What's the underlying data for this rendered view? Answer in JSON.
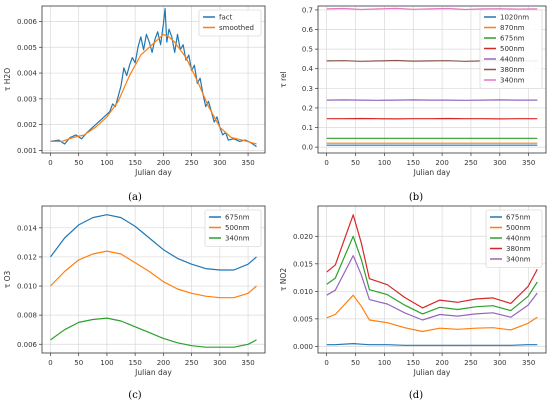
{
  "colors": [
    "#1f77b4",
    "#ff7f0e",
    "#2ca02c",
    "#d62728",
    "#9467bd",
    "#8c564b",
    "#e377c2"
  ],
  "chart_data": [
    {
      "type": "line",
      "caption": "(a)",
      "xlabel": "Julian day",
      "ylabel": "τ H2O",
      "xlim": [
        -15,
        380
      ],
      "ylim": [
        0.0009,
        0.0066
      ],
      "xticks": [
        0,
        50,
        100,
        150,
        200,
        250,
        300,
        350
      ],
      "yticks": [
        0.001,
        0.002,
        0.003,
        0.004,
        0.005,
        0.006
      ],
      "ytick_labels": [
        "0.001",
        "0.002",
        "0.003",
        "0.004",
        "0.005",
        "0.006"
      ],
      "grid": true,
      "legend": "top-right",
      "series": [
        {
          "name": "fact",
          "x": [
            0,
            15,
            25,
            35,
            45,
            55,
            65,
            75,
            85,
            95,
            105,
            110,
            115,
            120,
            125,
            130,
            135,
            140,
            145,
            150,
            155,
            160,
            165,
            170,
            175,
            180,
            185,
            190,
            195,
            200,
            203,
            206,
            210,
            215,
            220,
            225,
            230,
            235,
            240,
            245,
            250,
            255,
            260,
            265,
            270,
            275,
            280,
            285,
            290,
            295,
            300,
            305,
            310,
            315,
            325,
            335,
            345,
            355,
            365
          ],
          "y": [
            0.00135,
            0.0014,
            0.00125,
            0.0015,
            0.0016,
            0.00145,
            0.0017,
            0.0019,
            0.0021,
            0.0023,
            0.0025,
            0.0028,
            0.0027,
            0.0031,
            0.0035,
            0.0042,
            0.0039,
            0.0043,
            0.0046,
            0.0044,
            0.005,
            0.0054,
            0.0049,
            0.0055,
            0.0052,
            0.0048,
            0.0053,
            0.0056,
            0.0051,
            0.0059,
            0.0065,
            0.0052,
            0.0057,
            0.0054,
            0.0048,
            0.0055,
            0.0049,
            0.0051,
            0.0045,
            0.0047,
            0.0041,
            0.0043,
            0.0036,
            0.0038,
            0.0032,
            0.0027,
            0.0029,
            0.0025,
            0.0021,
            0.0023,
            0.0019,
            0.0016,
            0.0017,
            0.0014,
            0.00145,
            0.00135,
            0.0014,
            0.0013,
            0.00115
          ]
        },
        {
          "name": "smoothed",
          "x": [
            0,
            20,
            40,
            60,
            80,
            100,
            120,
            140,
            160,
            180,
            200,
            210,
            220,
            240,
            260,
            280,
            300,
            320,
            340,
            365
          ],
          "y": [
            0.00135,
            0.00135,
            0.0015,
            0.0016,
            0.0019,
            0.0023,
            0.0029,
            0.0039,
            0.0047,
            0.0051,
            0.0055,
            0.0054,
            0.0052,
            0.0046,
            0.0037,
            0.0027,
            0.0019,
            0.0015,
            0.0014,
            0.00125
          ]
        }
      ]
    },
    {
      "type": "line",
      "caption": "(b)",
      "xlabel": "Julian day",
      "ylabel": "τ rel",
      "xlim": [
        -15,
        380
      ],
      "ylim": [
        -0.03,
        0.72
      ],
      "xticks": [
        0,
        50,
        100,
        150,
        200,
        250,
        300,
        350
      ],
      "yticks": [
        0.0,
        0.1,
        0.2,
        0.3,
        0.4,
        0.5,
        0.6,
        0.7
      ],
      "ytick_labels": [
        "0.0",
        "0.1",
        "0.2",
        "0.3",
        "0.4",
        "0.5",
        "0.6",
        "0.7"
      ],
      "grid": true,
      "legend": "top-right",
      "x": [
        0,
        30,
        60,
        90,
        120,
        150,
        180,
        210,
        240,
        270,
        300,
        330,
        365
      ],
      "series": [
        {
          "name": "1020nm",
          "values": [
            0.01,
            0.01,
            0.01,
            0.01,
            0.01,
            0.01,
            0.01,
            0.01,
            0.01,
            0.01,
            0.01,
            0.01,
            0.01
          ]
        },
        {
          "name": "870nm",
          "values": [
            0.02,
            0.02,
            0.02,
            0.02,
            0.02,
            0.02,
            0.02,
            0.02,
            0.02,
            0.02,
            0.02,
            0.02,
            0.02
          ]
        },
        {
          "name": "675nm",
          "values": [
            0.045,
            0.045,
            0.045,
            0.045,
            0.045,
            0.045,
            0.045,
            0.045,
            0.045,
            0.045,
            0.045,
            0.045,
            0.045
          ]
        },
        {
          "name": "500nm",
          "values": [
            0.145,
            0.145,
            0.146,
            0.145,
            0.144,
            0.145,
            0.145,
            0.146,
            0.145,
            0.145,
            0.144,
            0.145,
            0.145
          ]
        },
        {
          "name": "440nm",
          "values": [
            0.24,
            0.241,
            0.24,
            0.239,
            0.24,
            0.241,
            0.24,
            0.24,
            0.239,
            0.24,
            0.241,
            0.24,
            0.24
          ]
        },
        {
          "name": "380nm",
          "values": [
            0.44,
            0.441,
            0.438,
            0.44,
            0.442,
            0.439,
            0.44,
            0.441,
            0.438,
            0.44,
            0.442,
            0.44,
            0.44
          ]
        },
        {
          "name": "340nm",
          "values": [
            0.705,
            0.707,
            0.702,
            0.705,
            0.708,
            0.703,
            0.705,
            0.707,
            0.702,
            0.705,
            0.706,
            0.704,
            0.705
          ]
        }
      ]
    },
    {
      "type": "line",
      "caption": "(c)",
      "xlabel": "Julian day",
      "ylabel": "τ O3",
      "xlim": [
        -15,
        380
      ],
      "ylim": [
        0.0054,
        0.0155
      ],
      "xticks": [
        0,
        50,
        100,
        150,
        200,
        250,
        300,
        350
      ],
      "yticks": [
        0.006,
        0.008,
        0.01,
        0.012,
        0.014
      ],
      "ytick_labels": [
        "0.006",
        "0.008",
        "0.010",
        "0.012",
        "0.014"
      ],
      "grid": true,
      "legend": "top-right",
      "x": [
        0,
        25,
        50,
        75,
        100,
        125,
        150,
        175,
        200,
        225,
        250,
        275,
        300,
        325,
        350,
        365
      ],
      "series": [
        {
          "name": "675nm",
          "values": [
            0.012,
            0.0133,
            0.0142,
            0.0147,
            0.0149,
            0.0147,
            0.0141,
            0.0133,
            0.0125,
            0.0119,
            0.0115,
            0.0112,
            0.0111,
            0.0111,
            0.0115,
            0.012
          ]
        },
        {
          "name": "500nm",
          "values": [
            0.01,
            0.011,
            0.0118,
            0.0122,
            0.0124,
            0.0122,
            0.0116,
            0.011,
            0.0103,
            0.0098,
            0.0095,
            0.0093,
            0.0092,
            0.0092,
            0.0095,
            0.01
          ]
        },
        {
          "name": "340nm",
          "values": [
            0.0063,
            0.007,
            0.0075,
            0.0077,
            0.0078,
            0.0076,
            0.0072,
            0.0068,
            0.0064,
            0.0061,
            0.0059,
            0.0058,
            0.0058,
            0.0058,
            0.006,
            0.0063
          ]
        }
      ]
    },
    {
      "type": "line",
      "caption": "(d)",
      "xlabel": "Julian day",
      "ylabel": "τ NO2",
      "xlim": [
        -15,
        380
      ],
      "ylim": [
        -0.0012,
        0.0255
      ],
      "xticks": [
        0,
        50,
        100,
        150,
        200,
        250,
        300,
        350
      ],
      "yticks": [
        0.0,
        0.005,
        0.01,
        0.015,
        0.02
      ],
      "ytick_labels": [
        "0.000",
        "0.005",
        "0.010",
        "0.015",
        "0.020"
      ],
      "grid": true,
      "legend": "top-right",
      "x": [
        0,
        15,
        46,
        60,
        74,
        105,
        135,
        166,
        196,
        227,
        258,
        288,
        319,
        349,
        365
      ],
      "series": [
        {
          "name": "675nm",
          "values": [
            0.0003,
            0.0003,
            0.0005,
            0.0004,
            0.0003,
            0.0003,
            0.0002,
            0.0002,
            0.0002,
            0.0002,
            0.0002,
            0.0002,
            0.0002,
            0.0003,
            0.0003
          ]
        },
        {
          "name": "500nm",
          "values": [
            0.0052,
            0.0058,
            0.0093,
            0.0073,
            0.0048,
            0.0043,
            0.0034,
            0.0027,
            0.0033,
            0.0031,
            0.0033,
            0.0034,
            0.003,
            0.0042,
            0.0053
          ]
        },
        {
          "name": "440nm",
          "values": [
            0.0113,
            0.0124,
            0.02,
            0.0158,
            0.0103,
            0.0094,
            0.0075,
            0.0059,
            0.0071,
            0.0067,
            0.0072,
            0.0074,
            0.0065,
            0.0091,
            0.0117
          ]
        },
        {
          "name": "380nm",
          "values": [
            0.0135,
            0.0148,
            0.0239,
            0.0188,
            0.0123,
            0.0112,
            0.0089,
            0.007,
            0.0084,
            0.008,
            0.0086,
            0.0088,
            0.0078,
            0.0109,
            0.014
          ]
        },
        {
          "name": "340nm",
          "values": [
            0.0093,
            0.0102,
            0.0165,
            0.013,
            0.0085,
            0.0077,
            0.0061,
            0.0048,
            0.0058,
            0.0055,
            0.0059,
            0.0061,
            0.0053,
            0.0075,
            0.0097
          ]
        }
      ]
    }
  ]
}
